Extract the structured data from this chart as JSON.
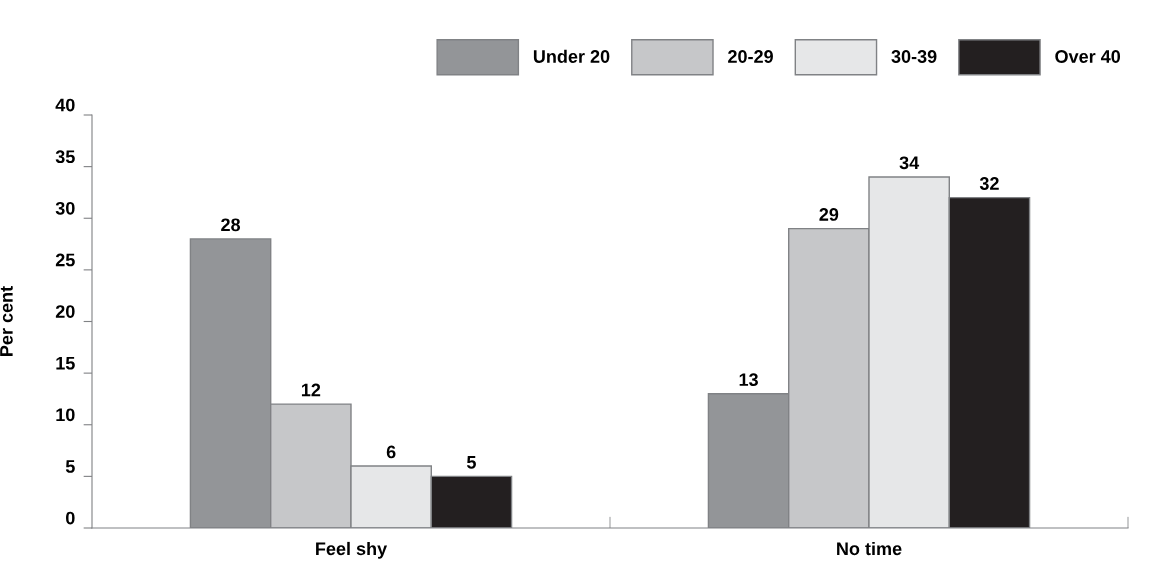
{
  "chart_data": {
    "type": "bar",
    "ylabel": "Per cent",
    "categories": [
      "Feel shy",
      "No time"
    ],
    "series": [
      {
        "name": "Under 20",
        "color": "#939598",
        "values": [
          28,
          13
        ]
      },
      {
        "name": "20-29",
        "color": "#c6c7c9",
        "values": [
          12,
          29
        ]
      },
      {
        "name": "30-39",
        "color": "#e6e7e8",
        "values": [
          6,
          34
        ]
      },
      {
        "name": "Over 40",
        "color": "#231f20",
        "values": [
          5,
          32
        ]
      }
    ],
    "ylim": [
      0,
      40
    ],
    "yticks": [
      0,
      5,
      10,
      15,
      20,
      25,
      30,
      35,
      40
    ],
    "data_labels": true,
    "legend": "top right",
    "grid": false
  }
}
